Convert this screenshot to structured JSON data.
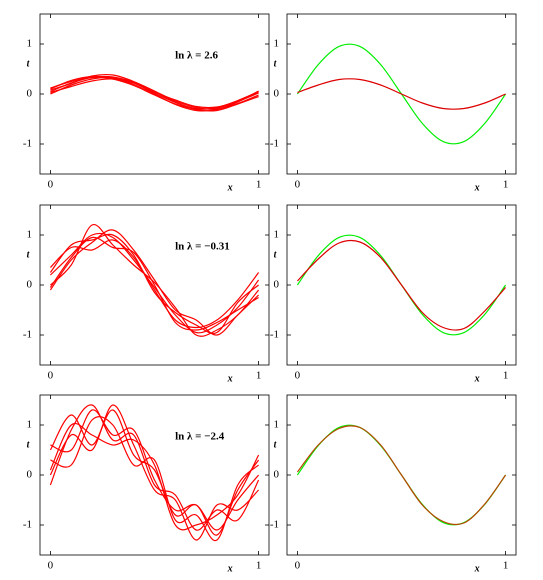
{
  "chart_data": [
    {
      "type": "line",
      "xlabel": "x",
      "ylabel": "t",
      "xlim": [
        -0.05,
        1.05
      ],
      "ylim": [
        -1.6,
        1.6
      ],
      "xticks": [
        0,
        1
      ],
      "yticks": [
        -1,
        0,
        1
      ],
      "annotation": "ln λ = 2.6",
      "x": [
        0,
        0.1,
        0.2,
        0.3,
        0.4,
        0.5,
        0.6,
        0.7,
        0.8,
        0.9,
        1
      ],
      "series": [
        {
          "color": "#ff0000",
          "values": [
            0.05,
            0.22,
            0.33,
            0.34,
            0.22,
            0.02,
            -0.17,
            -0.29,
            -0.28,
            -0.15,
            0.02
          ]
        },
        {
          "color": "#ff0000",
          "values": [
            0.12,
            0.25,
            0.33,
            0.3,
            0.17,
            -0.02,
            -0.2,
            -0.3,
            -0.27,
            -0.13,
            0.05
          ]
        },
        {
          "color": "#ff0000",
          "values": [
            0.0,
            0.18,
            0.3,
            0.33,
            0.24,
            0.06,
            -0.14,
            -0.27,
            -0.3,
            -0.19,
            -0.02
          ]
        },
        {
          "color": "#ff0000",
          "values": [
            0.08,
            0.21,
            0.36,
            0.38,
            0.25,
            0.05,
            -0.16,
            -0.31,
            -0.33,
            -0.2,
            -0.05
          ]
        },
        {
          "color": "#ff0000",
          "values": [
            0.03,
            0.15,
            0.26,
            0.3,
            0.22,
            0.04,
            -0.12,
            -0.25,
            -0.26,
            -0.14,
            0.03
          ]
        },
        {
          "color": "#ff0000",
          "values": [
            0.1,
            0.27,
            0.35,
            0.32,
            0.19,
            0.0,
            -0.21,
            -0.33,
            -0.31,
            -0.16,
            0.06
          ]
        }
      ]
    },
    {
      "type": "line",
      "xlabel": "x",
      "ylabel": "t",
      "xlim": [
        -0.05,
        1.05
      ],
      "ylim": [
        -1.6,
        1.6
      ],
      "xticks": [
        0,
        1
      ],
      "yticks": [
        -1,
        0,
        1
      ],
      "x": [
        0,
        0.1,
        0.2,
        0.3,
        0.4,
        0.5,
        0.6,
        0.7,
        0.8,
        0.9,
        1
      ],
      "series": [
        {
          "color": "#00ee00",
          "values": [
            0,
            0.588,
            0.951,
            0.951,
            0.588,
            0,
            -0.588,
            -0.951,
            -0.951,
            -0.588,
            0
          ]
        },
        {
          "color": "#dd0000",
          "values": [
            0.03,
            0.18,
            0.29,
            0.29,
            0.18,
            0,
            -0.18,
            -0.29,
            -0.29,
            -0.18,
            0
          ]
        }
      ]
    },
    {
      "type": "line",
      "xlabel": "x",
      "ylabel": "t",
      "xlim": [
        -0.05,
        1.05
      ],
      "ylim": [
        -1.6,
        1.6
      ],
      "xticks": [
        0,
        1
      ],
      "yticks": [
        -1,
        0,
        1
      ],
      "annotation": "ln λ = −0.31",
      "x": [
        0,
        0.1,
        0.2,
        0.3,
        0.4,
        0.5,
        0.6,
        0.7,
        0.8,
        0.9,
        1
      ],
      "series": [
        {
          "color": "#ff0000",
          "values": [
            0.2,
            0.6,
            1.0,
            0.95,
            0.5,
            -0.05,
            -0.6,
            -0.95,
            -0.8,
            -0.45,
            0.1
          ]
        },
        {
          "color": "#ff0000",
          "values": [
            -0.1,
            0.5,
            0.85,
            1.1,
            0.7,
            0.1,
            -0.5,
            -0.7,
            -1.0,
            -0.6,
            -0.2
          ]
        },
        {
          "color": "#ff0000",
          "values": [
            0.35,
            0.75,
            0.7,
            0.9,
            0.55,
            -0.1,
            -0.7,
            -0.85,
            -0.7,
            -0.3,
            0.25
          ]
        },
        {
          "color": "#ff0000",
          "values": [
            0.0,
            0.4,
            1.2,
            0.8,
            0.4,
            0.05,
            -0.45,
            -1.0,
            -0.9,
            -0.6,
            -0.1
          ]
        },
        {
          "color": "#ff0000",
          "values": [
            0.25,
            0.8,
            0.9,
            1.0,
            0.6,
            -0.15,
            -0.55,
            -0.8,
            -0.95,
            -0.35,
            0.0
          ]
        },
        {
          "color": "#ff0000",
          "values": [
            -0.05,
            0.55,
            0.95,
            0.75,
            0.65,
            0.0,
            -0.75,
            -0.9,
            -0.75,
            -0.5,
            -0.25
          ]
        }
      ]
    },
    {
      "type": "line",
      "xlabel": "x",
      "ylabel": "t",
      "xlim": [
        -0.05,
        1.05
      ],
      "ylim": [
        -1.6,
        1.6
      ],
      "xticks": [
        0,
        1
      ],
      "yticks": [
        -1,
        0,
        1
      ],
      "x": [
        0,
        0.1,
        0.2,
        0.3,
        0.4,
        0.5,
        0.6,
        0.7,
        0.8,
        0.9,
        1
      ],
      "series": [
        {
          "color": "#00ee00",
          "values": [
            0,
            0.588,
            0.951,
            0.951,
            0.588,
            0,
            -0.588,
            -0.951,
            -0.951,
            -0.588,
            0
          ]
        },
        {
          "color": "#dd0000",
          "values": [
            0.08,
            0.52,
            0.84,
            0.86,
            0.55,
            0.0,
            -0.55,
            -0.85,
            -0.87,
            -0.52,
            -0.05
          ]
        }
      ]
    },
    {
      "type": "line",
      "xlabel": "x",
      "ylabel": "t",
      "xlim": [
        -0.05,
        1.05
      ],
      "ylim": [
        -1.6,
        1.6
      ],
      "xticks": [
        0,
        1
      ],
      "yticks": [
        -1,
        0,
        1
      ],
      "annotation": "ln λ = −2.4",
      "x": [
        0,
        0.1,
        0.2,
        0.3,
        0.4,
        0.5,
        0.6,
        0.7,
        0.8,
        0.9,
        1
      ],
      "series": [
        {
          "color": "#ff0000",
          "values": [
            0.5,
            1.2,
            0.6,
            1.3,
            0.4,
            0.1,
            -0.8,
            -0.6,
            -1.2,
            -0.3,
            0.3
          ]
        },
        {
          "color": "#ff0000",
          "values": [
            -0.2,
            0.9,
            1.4,
            0.7,
            0.8,
            -0.2,
            -0.4,
            -1.1,
            -0.7,
            -0.9,
            -0.1
          ]
        },
        {
          "color": "#ff0000",
          "values": [
            0.3,
            0.2,
            1.1,
            1.0,
            0.2,
            0.3,
            -0.9,
            -0.8,
            -1.3,
            -0.2,
            0.2
          ]
        },
        {
          "color": "#ff0000",
          "values": [
            0.0,
            0.8,
            0.5,
            1.4,
            0.6,
            -0.3,
            -0.5,
            -1.3,
            -0.6,
            -0.7,
            -0.3
          ]
        },
        {
          "color": "#ff0000",
          "values": [
            0.6,
            0.5,
            1.3,
            0.8,
            0.9,
            -0.1,
            -0.7,
            -0.6,
            -1.1,
            -0.5,
            0.0
          ]
        },
        {
          "color": "#ff0000",
          "values": [
            0.1,
            1.0,
            0.8,
            0.6,
            0.7,
            0.2,
            -1.0,
            -1.0,
            -0.8,
            -0.4,
            0.4
          ]
        }
      ]
    },
    {
      "type": "line",
      "xlabel": "x",
      "ylabel": "t",
      "xlim": [
        -0.05,
        1.05
      ],
      "ylim": [
        -1.6,
        1.6
      ],
      "xticks": [
        0,
        1
      ],
      "yticks": [
        -1,
        0,
        1
      ],
      "x": [
        0,
        0.1,
        0.2,
        0.3,
        0.4,
        0.5,
        0.6,
        0.7,
        0.8,
        0.9,
        1
      ],
      "series": [
        {
          "color": "#00ee00",
          "values": [
            0,
            0.588,
            0.951,
            0.951,
            0.588,
            0,
            -0.588,
            -0.951,
            -0.951,
            -0.588,
            0
          ]
        },
        {
          "color": "#bb4400",
          "values": [
            0.06,
            0.6,
            0.93,
            0.95,
            0.6,
            0.0,
            -0.6,
            -0.93,
            -0.96,
            -0.58,
            0.0
          ]
        }
      ]
    }
  ]
}
